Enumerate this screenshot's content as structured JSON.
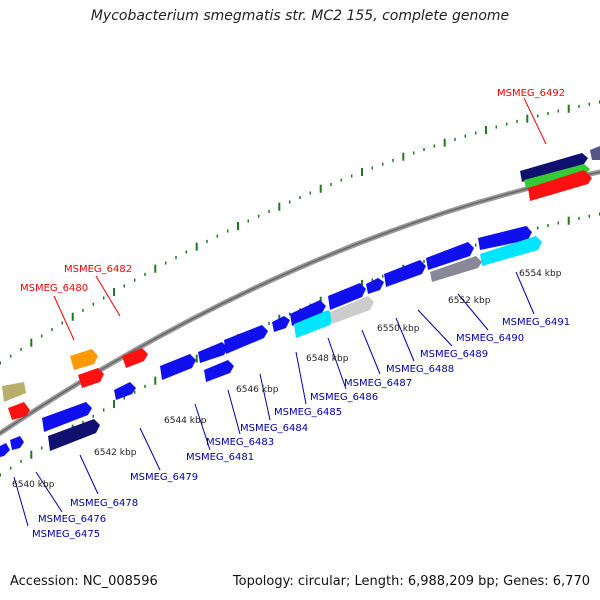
{
  "title": "Mycobacterium smegmatis str. MC2 155, complete genome",
  "accession": "Accession: NC_008596",
  "topology": "Topology: circular; Length: 6,988,209 bp; Genes: 6,770",
  "colors": {
    "label_highlight": "#ff0000",
    "label_normal": "#0000aa",
    "backbone": "#888888",
    "tick": "#227722"
  },
  "axis_labels": [
    "6540 kbp",
    "6542 kbp",
    "6544 kbp",
    "6546 kbp",
    "6548 kbp",
    "6550 kbp",
    "6552 kbp",
    "6554 kbp"
  ],
  "gene_labels": [
    {
      "text": "MSMEG_6475",
      "highlight": false
    },
    {
      "text": "MSMEG_6476",
      "highlight": false
    },
    {
      "text": "MSMEG_6478",
      "highlight": false
    },
    {
      "text": "MSMEG_6479",
      "highlight": false
    },
    {
      "text": "MSMEG_6480",
      "highlight": true
    },
    {
      "text": "MSMEG_6481",
      "highlight": false
    },
    {
      "text": "MSMEG_6482",
      "highlight": true
    },
    {
      "text": "MSMEG_6483",
      "highlight": false
    },
    {
      "text": "MSMEG_6484",
      "highlight": false
    },
    {
      "text": "MSMEG_6485",
      "highlight": false
    },
    {
      "text": "MSMEG_6486",
      "highlight": false
    },
    {
      "text": "MSMEG_6487",
      "highlight": false
    },
    {
      "text": "MSMEG_6488",
      "highlight": false
    },
    {
      "text": "MSMEG_6489",
      "highlight": false
    },
    {
      "text": "MSMEG_6490",
      "highlight": false
    },
    {
      "text": "MSMEG_6491",
      "highlight": false
    },
    {
      "text": "MSMEG_6492",
      "highlight": true
    }
  ]
}
